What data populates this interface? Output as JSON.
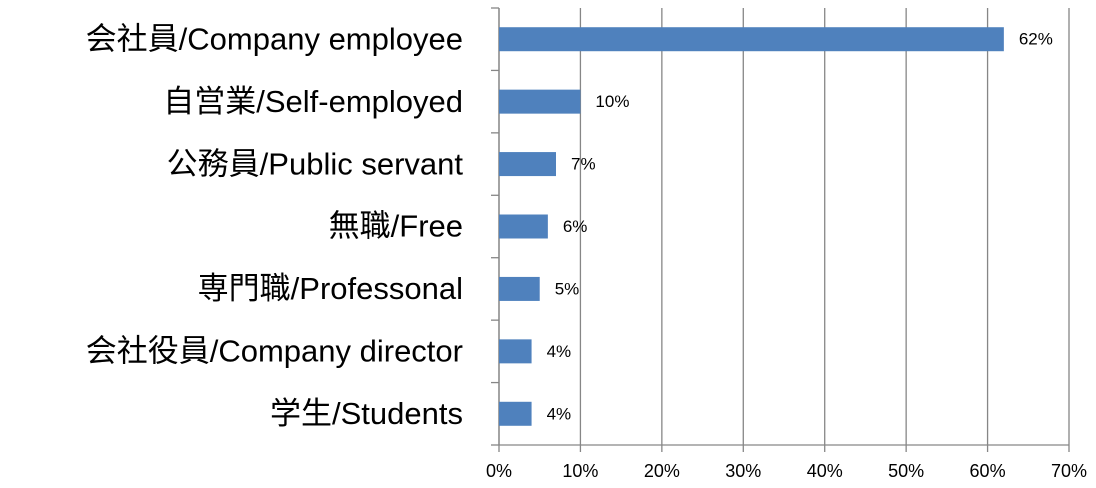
{
  "chart_data": {
    "type": "barh",
    "categories": [
      "会社員/Company employee",
      "自営業/Self-employed",
      "公務員/Public servant",
      "無職/Free",
      "専門職/Professonal",
      "会社役員/Company director",
      "学生/Students"
    ],
    "values": [
      62,
      10,
      7,
      6,
      5,
      4,
      4
    ],
    "value_labels": [
      "62%",
      "10%",
      "7%",
      "6%",
      "5%",
      "4%",
      "4%"
    ],
    "color": "#4f81bd",
    "xlim": [
      0,
      70
    ],
    "xticks": [
      {
        "value": 0,
        "label": "0%"
      },
      {
        "value": 10,
        "label": "10%"
      },
      {
        "value": 20,
        "label": "20%"
      },
      {
        "value": 30,
        "label": "30%"
      },
      {
        "value": 40,
        "label": "40%"
      },
      {
        "value": 50,
        "label": "50%"
      },
      {
        "value": 60,
        "label": "60%"
      },
      {
        "value": 70,
        "label": "70%"
      }
    ],
    "grid": true
  }
}
